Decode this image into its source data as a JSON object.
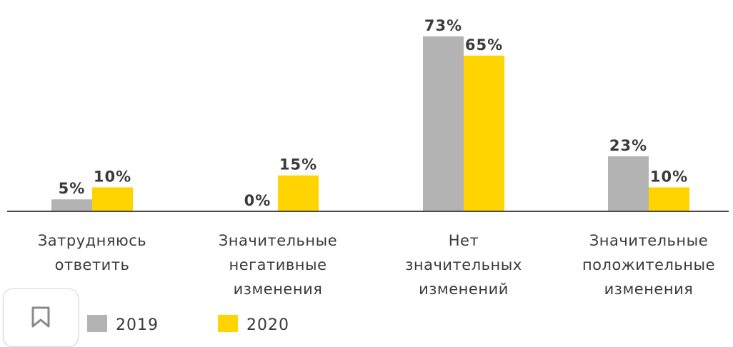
{
  "chart_data": {
    "type": "bar",
    "categories": [
      [
        "Затрудняюсь",
        "ответить"
      ],
      [
        "Значительные",
        "негативные",
        "изменения"
      ],
      [
        "Нет",
        "значительных",
        "изменений"
      ],
      [
        "Значительные",
        "положительные",
        "изменения"
      ]
    ],
    "series": [
      {
        "name": "2019",
        "color": "#b3b3b3",
        "values": [
          5,
          0,
          73,
          23
        ],
        "labels": [
          "5%",
          "0%",
          "73%",
          "23%"
        ]
      },
      {
        "name": "2020",
        "color": "#ffd400",
        "values": [
          10,
          15,
          65,
          10
        ],
        "labels": [
          "10%",
          "15%",
          "65%",
          "10%"
        ]
      }
    ],
    "ylim": [
      0,
      73
    ],
    "legend_position": "bottom-left",
    "axis_color": "#4a4a4a"
  },
  "icons": {
    "bookmark": "bookmark-icon"
  }
}
